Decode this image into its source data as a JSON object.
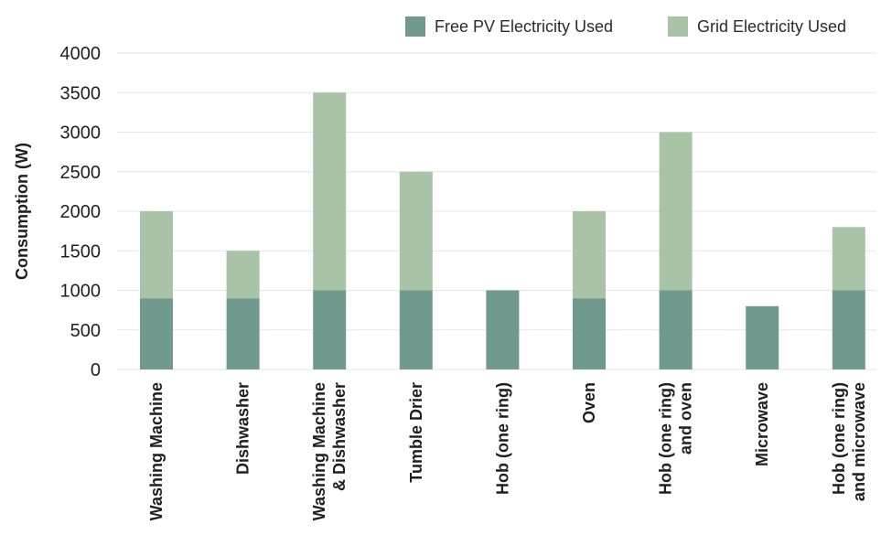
{
  "chart_data": {
    "type": "bar",
    "stacked": true,
    "title": "",
    "xlabel": "",
    "ylabel": "Consumption (W)",
    "ylim": [
      0,
      4000
    ],
    "yticks": [
      0,
      500,
      1000,
      1500,
      2000,
      2500,
      3000,
      3500,
      4000
    ],
    "grid": true,
    "legend_position": "top-right",
    "categories": [
      [
        "Washing Machine"
      ],
      [
        "Dishwasher"
      ],
      [
        "Washing Machine",
        "& Dishwasher"
      ],
      [
        "Tumble Drier"
      ],
      [
        "Hob (one ring)"
      ],
      [
        "Oven"
      ],
      [
        "Hob (one ring)",
        "and oven"
      ],
      [
        "Microwave"
      ],
      [
        "Hob (one ring)",
        "and microwave"
      ]
    ],
    "series": [
      {
        "name": "Free PV Electricity Used",
        "color": "#6f9a8d",
        "values": [
          900,
          900,
          1000,
          1000,
          1000,
          900,
          1000,
          800,
          1000
        ]
      },
      {
        "name": "Grid Electricity Used",
        "color": "#a9c3a6",
        "values": [
          1100,
          600,
          2500,
          1500,
          0,
          1100,
          2000,
          0,
          800
        ]
      }
    ]
  }
}
